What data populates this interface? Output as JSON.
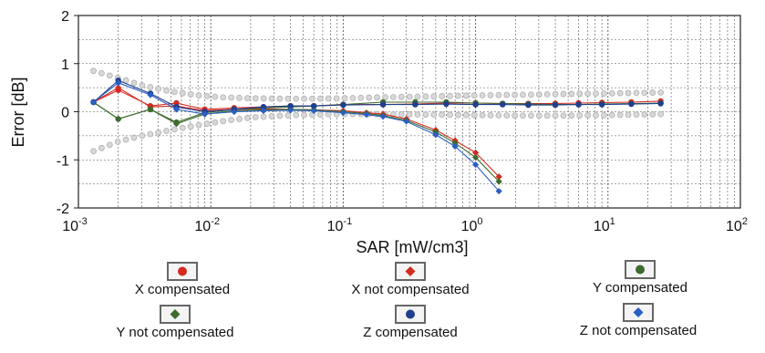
{
  "chart_data": {
    "type": "scatter",
    "xlabel": "SAR [mW/cm3]",
    "ylabel": "Error [dB]",
    "xscale": "log",
    "xlim": [
      0.001,
      100
    ],
    "ylim": [
      -2,
      2
    ],
    "yticks": [
      2,
      1,
      0,
      -1,
      -2
    ],
    "xtick_bases": [
      "10",
      "10",
      "10",
      "10",
      "10",
      "10"
    ],
    "xtick_exps": [
      "-3",
      "-2",
      "-1",
      "0",
      "1",
      "2"
    ],
    "grid": true,
    "legend_position": "bottom",
    "uncertainty_band": {
      "x": [
        0.0013,
        0.002,
        0.003,
        0.005,
        0.008,
        0.012,
        0.02,
        0.035,
        0.06,
        0.1,
        0.2,
        0.5,
        1,
        2,
        5,
        10,
        25
      ],
      "upper": [
        0.85,
        0.7,
        0.55,
        0.42,
        0.34,
        0.3,
        0.28,
        0.27,
        0.27,
        0.28,
        0.3,
        0.32,
        0.34,
        0.35,
        0.37,
        0.38,
        0.4
      ],
      "lower": [
        -0.82,
        -0.62,
        -0.5,
        -0.38,
        -0.28,
        -0.2,
        -0.12,
        -0.08,
        -0.06,
        -0.05,
        -0.05,
        -0.06,
        -0.07,
        -0.08,
        -0.08,
        -0.07,
        -0.05
      ],
      "color": "#b0b0b0"
    },
    "series": [
      {
        "name": "X compensated",
        "marker": "circle",
        "color": "#d42a20",
        "x": [
          0.0013,
          0.002,
          0.0035,
          0.0055,
          0.009,
          0.015,
          0.025,
          0.04,
          0.06,
          0.1,
          0.2,
          0.35,
          0.6,
          1,
          1.6,
          2.5,
          4,
          6,
          9,
          15,
          25
        ],
        "y": [
          0.2,
          0.45,
          0.12,
          0.18,
          0.05,
          0.08,
          0.1,
          0.12,
          0.12,
          0.15,
          0.15,
          0.16,
          0.18,
          0.18,
          0.17,
          0.17,
          0.17,
          0.18,
          0.19,
          0.2,
          0.22
        ]
      },
      {
        "name": "X not compensated",
        "marker": "diamond",
        "color": "#d42a20",
        "x": [
          0.0013,
          0.002,
          0.0035,
          0.0055,
          0.009,
          0.015,
          0.025,
          0.04,
          0.06,
          0.1,
          0.15,
          0.2,
          0.3,
          0.5,
          0.7,
          1,
          1.5
        ],
        "y": [
          0.2,
          0.5,
          0.1,
          0.12,
          0.02,
          0.05,
          0.06,
          0.05,
          0.04,
          0.02,
          -0.02,
          -0.05,
          -0.15,
          -0.38,
          -0.6,
          -0.85,
          -1.35
        ]
      },
      {
        "name": "Y compensated",
        "marker": "circle",
        "color": "#3e6b2e",
        "x": [
          0.0013,
          0.002,
          0.0035,
          0.0055,
          0.009,
          0.015,
          0.025,
          0.04,
          0.06,
          0.1,
          0.2,
          0.35,
          0.6,
          1,
          1.6,
          2.5,
          4,
          6,
          9,
          15,
          25
        ],
        "y": [
          0.2,
          -0.15,
          0.05,
          -0.22,
          -0.02,
          0.05,
          0.08,
          0.1,
          0.12,
          0.15,
          0.2,
          0.2,
          0.2,
          0.18,
          0.17,
          0.16,
          0.15,
          0.15,
          0.16,
          0.17,
          0.18
        ]
      },
      {
        "name": "Y not compensated",
        "marker": "diamond",
        "color": "#3e6b2e",
        "x": [
          0.0013,
          0.002,
          0.0035,
          0.0055,
          0.009,
          0.015,
          0.025,
          0.04,
          0.06,
          0.1,
          0.15,
          0.2,
          0.3,
          0.5,
          0.7,
          1,
          1.5
        ],
        "y": [
          0.2,
          -0.15,
          0.05,
          -0.25,
          -0.05,
          0.02,
          0.04,
          0.05,
          0.04,
          0.0,
          -0.04,
          -0.08,
          -0.18,
          -0.42,
          -0.65,
          -0.95,
          -1.45
        ]
      },
      {
        "name": "Z compensated",
        "marker": "circle",
        "color": "#1f3f8f",
        "x": [
          0.0013,
          0.002,
          0.0035,
          0.0055,
          0.009,
          0.015,
          0.025,
          0.04,
          0.06,
          0.1,
          0.2,
          0.35,
          0.6,
          1,
          1.6,
          2.5,
          4,
          6,
          9,
          15,
          25
        ],
        "y": [
          0.2,
          0.65,
          0.38,
          0.1,
          0.0,
          0.05,
          0.1,
          0.12,
          0.12,
          0.14,
          0.15,
          0.15,
          0.16,
          0.15,
          0.15,
          0.14,
          0.14,
          0.15,
          0.15,
          0.16,
          0.17
        ]
      },
      {
        "name": "Z not compensated",
        "marker": "diamond",
        "color": "#2a5fc4",
        "x": [
          0.0013,
          0.002,
          0.0035,
          0.0055,
          0.009,
          0.015,
          0.025,
          0.04,
          0.06,
          0.1,
          0.15,
          0.2,
          0.3,
          0.5,
          0.7,
          1,
          1.5
        ],
        "y": [
          0.2,
          0.6,
          0.35,
          0.05,
          -0.05,
          0.0,
          0.02,
          0.03,
          0.02,
          -0.02,
          -0.06,
          -0.1,
          -0.2,
          -0.48,
          -0.72,
          -1.1,
          -1.65
        ]
      }
    ]
  }
}
